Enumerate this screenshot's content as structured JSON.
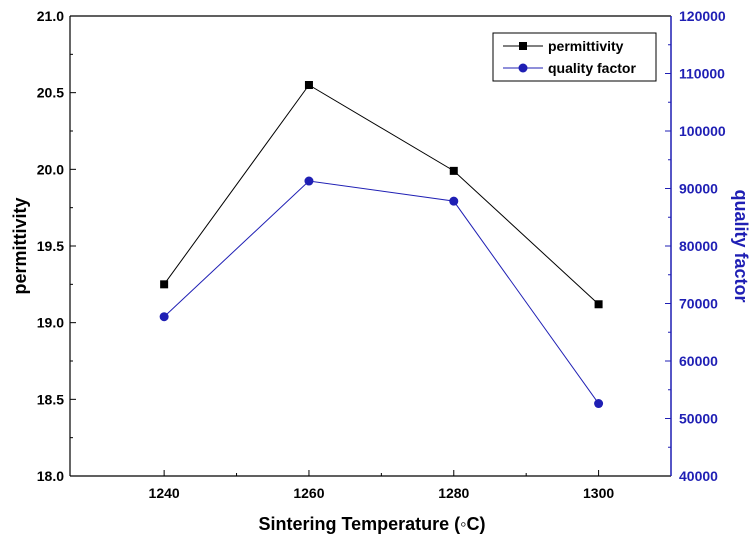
{
  "chart_data": {
    "type": "line",
    "title": "",
    "xlabel": "Sintering Temperature (◦C)",
    "x": [
      1240,
      1260,
      1280,
      1300
    ],
    "xticks": [
      "1240",
      "1260",
      "1280",
      "1300"
    ],
    "xlim": [
      1227,
      1310
    ],
    "y_left": {
      "label": "permittivity",
      "lim": [
        18.0,
        21.0
      ],
      "ticks": [
        "18.0",
        "18.5",
        "19.0",
        "19.5",
        "20.0",
        "20.5",
        "21.0"
      ],
      "color": "#000000"
    },
    "y_right": {
      "label": "quality factor",
      "lim": [
        40000,
        120000
      ],
      "ticks": [
        "40000",
        "50000",
        "60000",
        "70000",
        "80000",
        "90000",
        "100000",
        "110000",
        "120000"
      ],
      "color": "#1f1fb4"
    },
    "series": [
      {
        "name": "permittivity",
        "axis": "left",
        "color": "#000000",
        "marker": "square",
        "values": [
          19.25,
          20.55,
          19.99,
          19.12
        ]
      },
      {
        "name": "quality factor",
        "axis": "right",
        "color": "#1f1fb4",
        "marker": "circle",
        "values": [
          67700,
          91300,
          87800,
          52600
        ]
      }
    ],
    "legend": "top-right",
    "grid": false
  }
}
